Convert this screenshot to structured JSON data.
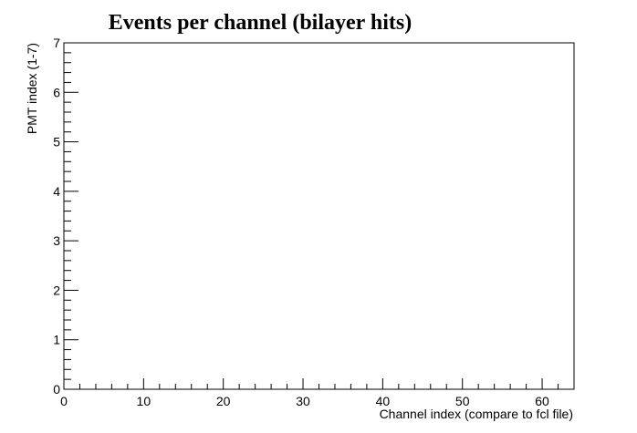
{
  "chart_data": {
    "type": "heatmap",
    "title": "Events per channel (bilayer hits)",
    "xlabel": "Channel index (compare to fcl file)",
    "ylabel": "PMT index (1-7)",
    "xlim": [
      0,
      64
    ],
    "ylim": [
      0,
      7
    ],
    "x_major_ticks": [
      0,
      10,
      20,
      30,
      40,
      50,
      60
    ],
    "x_minor_step": 2,
    "y_major_ticks": [
      0,
      1,
      2,
      3,
      4,
      5,
      6,
      7
    ],
    "y_minor_step": 0.2,
    "grid": false,
    "values": [],
    "colors": {
      "frame": "#000000",
      "background": "#ffffff"
    }
  }
}
